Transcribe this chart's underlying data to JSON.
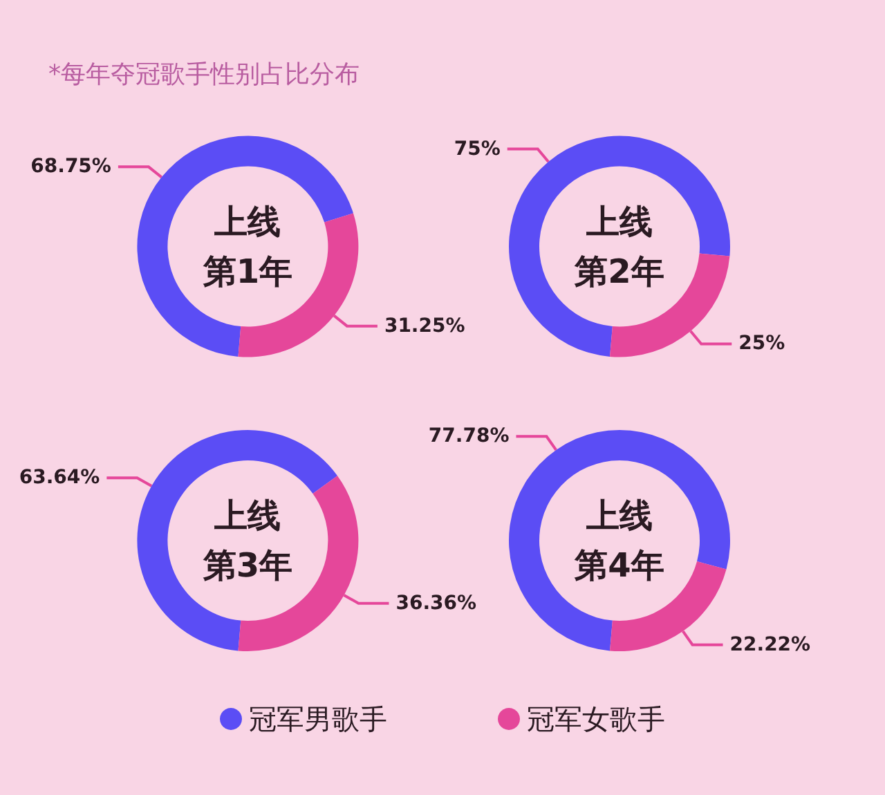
{
  "chart_data": {
    "type": "donut",
    "title": "*每年夺冠歌手性别占比分布",
    "categories": [
      "冠军男歌手",
      "冠军女歌手"
    ],
    "colors": [
      "#5b4df5",
      "#e5479a"
    ],
    "legend": "bottom",
    "series": [
      {
        "name": "上线第1年",
        "values": [
          68.75,
          31.25
        ],
        "value_labels": [
          "68.75%",
          "31.25%"
        ]
      },
      {
        "name": "上线第2年",
        "values": [
          75,
          25
        ],
        "value_labels": [
          "75%",
          "25%"
        ]
      },
      {
        "name": "上线第3年",
        "values": [
          63.64,
          36.36
        ],
        "value_labels": [
          "63.64%",
          "36.36%"
        ]
      },
      {
        "name": "上线第4年",
        "values": [
          77.78,
          22.22
        ],
        "value_labels": [
          "77.78%",
          "22.22%"
        ]
      }
    ]
  }
}
